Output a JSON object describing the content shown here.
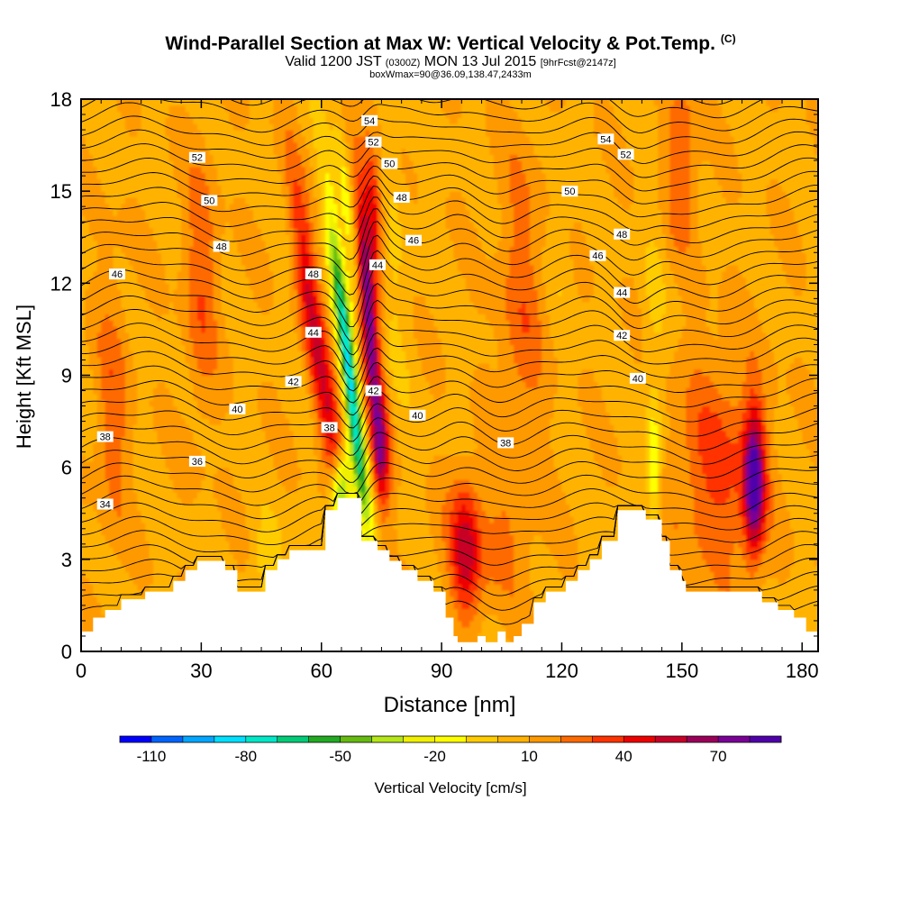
{
  "header": {
    "title": "Wind-Parallel Section at Max W: Vertical Velocity & Pot.Temp.",
    "title_tag": "(C)",
    "valid_prefix": "Valid 1200 JST",
    "valid_utc": "(0300Z)",
    "valid_date": "MON 13 Jul 2015",
    "forecast": "[9hrFcst@2147z]",
    "boxline": "boxWmax=90@36.09,138.47,2433m"
  },
  "chart_data": {
    "type": "heatmap",
    "xlabel": "Distance [nm]",
    "ylabel": "Height [Kft MSL]",
    "xlim": [
      0,
      184
    ],
    "ylim": [
      0,
      18
    ],
    "x_ticks": [
      0,
      30,
      60,
      90,
      120,
      150,
      180
    ],
    "y_ticks": [
      0,
      3,
      6,
      9,
      12,
      15,
      18
    ],
    "colorbar": {
      "label": "Vertical Velocity [cm/s]",
      "tick_labels": [
        "-110",
        "-80",
        "-50",
        "-20",
        "10",
        "40",
        "70"
      ],
      "tick_values": [
        -110,
        -80,
        -50,
        -20,
        10,
        40,
        70
      ],
      "min": -120,
      "max": 90,
      "colors": [
        "#0000ff",
        "#0064ff",
        "#00a6ff",
        "#00e0ff",
        "#00e8c8",
        "#00cc77",
        "#22aa22",
        "#66bb11",
        "#b4e619",
        "#f0f000",
        "#ffff00",
        "#ffcc00",
        "#ffb300",
        "#ff9900",
        "#ff6a00",
        "#ff3300",
        "#ee0000",
        "#c80028",
        "#9a005a",
        "#7a0096",
        "#5000aa"
      ]
    },
    "background_w": 8,
    "w_features": [
      {
        "x": 57,
        "y": 11.5,
        "sx": 2.0,
        "sy": 3.0,
        "tilt": -0.9,
        "w": 40
      },
      {
        "x": 63,
        "y": 7.0,
        "sx": 1.8,
        "sy": 2.0,
        "tilt": -0.9,
        "w": 30
      },
      {
        "x": 67,
        "y": 9.0,
        "sx": 1.4,
        "sy": 3.6,
        "tilt": -0.9,
        "w": -90
      },
      {
        "x": 67,
        "y": 14.0,
        "sx": 1.4,
        "sy": 2.0,
        "tilt": -0.9,
        "w": -30
      },
      {
        "x": 65,
        "y": 5.2,
        "sx": 1.8,
        "sy": 0.9,
        "tilt": 0,
        "w": -70
      },
      {
        "x": 72,
        "y": 10.5,
        "sx": 1.6,
        "sy": 3.2,
        "tilt": -0.6,
        "w": 70
      },
      {
        "x": 73,
        "y": 14.5,
        "sx": 1.6,
        "sy": 1.6,
        "tilt": -0.5,
        "w": 40
      },
      {
        "x": 75,
        "y": 6.5,
        "sx": 1.6,
        "sy": 1.2,
        "tilt": 0,
        "w": 35
      },
      {
        "x": 78,
        "y": 12.0,
        "sx": 3.0,
        "sy": 4.0,
        "tilt": 0,
        "w": -8
      },
      {
        "x": 96,
        "y": 3.3,
        "sx": 2.4,
        "sy": 1.6,
        "tilt": 0,
        "w": 35
      },
      {
        "x": 168,
        "y": 5.5,
        "sx": 1.8,
        "sy": 1.6,
        "tilt": 0,
        "w": 75
      },
      {
        "x": 159,
        "y": 6.0,
        "sx": 8.0,
        "sy": 2.5,
        "tilt": 0,
        "w": 25
      },
      {
        "x": 143,
        "y": 6.0,
        "sx": 1.2,
        "sy": 1.3,
        "tilt": 0,
        "w": -30
      },
      {
        "x": 143,
        "y": 10.0,
        "sx": 2.0,
        "sy": 3.0,
        "tilt": 0,
        "w": -10
      },
      {
        "x": 47,
        "y": 3.0,
        "sx": 3.0,
        "sy": 1.0,
        "tilt": 0,
        "w": -15
      },
      {
        "x": 100,
        "y": 3.5,
        "sx": 8.0,
        "sy": 1.5,
        "tilt": 0,
        "w": 15
      },
      {
        "x": 30,
        "y": 12.0,
        "sx": 3.0,
        "sy": 3.0,
        "tilt": 0,
        "w": 20
      },
      {
        "x": 8,
        "y": 8.0,
        "sx": 3.0,
        "sy": 3.0,
        "tilt": 0,
        "w": 18
      },
      {
        "x": 110,
        "y": 11.0,
        "sx": 4.0,
        "sy": 4.0,
        "tilt": 0,
        "w": 18
      },
      {
        "x": 150,
        "y": 16.0,
        "sx": 3.0,
        "sy": 2.0,
        "tilt": 0,
        "w": 20
      },
      {
        "x": 120,
        "y": 14.0,
        "sx": 2.0,
        "sy": 2.0,
        "tilt": 0,
        "w": -8
      }
    ],
    "terrain_steps": [
      [
        0,
        0.65
      ],
      [
        3,
        1.1
      ],
      [
        6,
        1.35
      ],
      [
        10,
        1.7
      ],
      [
        16,
        1.95
      ],
      [
        23,
        2.3
      ],
      [
        26,
        2.65
      ],
      [
        29,
        2.95
      ],
      [
        36,
        2.65
      ],
      [
        39,
        1.95
      ],
      [
        46,
        2.65
      ],
      [
        49,
        3.0
      ],
      [
        52,
        3.3
      ],
      [
        61,
        4.6
      ],
      [
        64,
        5.0
      ],
      [
        70,
        3.6
      ],
      [
        74,
        3.3
      ],
      [
        77,
        2.95
      ],
      [
        80,
        2.65
      ],
      [
        84,
        2.3
      ],
      [
        88,
        1.95
      ],
      [
        91,
        1.1
      ],
      [
        93,
        0.5
      ],
      [
        94,
        0.3
      ],
      [
        99,
        0.5
      ],
      [
        101,
        0.3
      ],
      [
        104,
        0.65
      ],
      [
        106,
        0.3
      ],
      [
        108,
        0.5
      ],
      [
        110,
        0.9
      ],
      [
        113,
        1.6
      ],
      [
        116,
        1.95
      ],
      [
        121,
        2.3
      ],
      [
        124,
        2.65
      ],
      [
        127,
        3.0
      ],
      [
        130,
        3.6
      ],
      [
        134,
        4.6
      ],
      [
        141,
        4.3
      ],
      [
        145,
        3.6
      ],
      [
        147,
        2.65
      ],
      [
        150,
        2.3
      ],
      [
        151,
        1.95
      ],
      [
        170,
        1.6
      ],
      [
        174,
        1.35
      ],
      [
        178,
        1.1
      ],
      [
        181,
        0.65
      ],
      [
        184,
        0.65
      ]
    ],
    "theta_labels": [
      {
        "text": "54",
        "x": 72,
        "y": 17.3
      },
      {
        "text": "54",
        "x": 131,
        "y": 16.7
      },
      {
        "text": "52",
        "x": 29,
        "y": 16.1
      },
      {
        "text": "52",
        "x": 73,
        "y": 16.6
      },
      {
        "text": "52",
        "x": 136,
        "y": 16.2
      },
      {
        "text": "50",
        "x": 32,
        "y": 14.7
      },
      {
        "text": "50",
        "x": 77,
        "y": 15.9
      },
      {
        "text": "50",
        "x": 122,
        "y": 15.0
      },
      {
        "text": "48",
        "x": 35,
        "y": 13.2
      },
      {
        "text": "48",
        "x": 80,
        "y": 14.8
      },
      {
        "text": "48",
        "x": 135,
        "y": 13.6
      },
      {
        "text": "46",
        "x": 9,
        "y": 12.3
      },
      {
        "text": "46",
        "x": 83,
        "y": 13.4
      },
      {
        "text": "46",
        "x": 129,
        "y": 12.9
      },
      {
        "text": "48",
        "x": 58,
        "y": 12.3
      },
      {
        "text": "44",
        "x": 74,
        "y": 12.6
      },
      {
        "text": "44",
        "x": 135,
        "y": 11.7
      },
      {
        "text": "44",
        "x": 58,
        "y": 10.4
      },
      {
        "text": "42",
        "x": 135,
        "y": 10.3
      },
      {
        "text": "42",
        "x": 53,
        "y": 8.8
      },
      {
        "text": "42",
        "x": 73,
        "y": 8.5
      },
      {
        "text": "40",
        "x": 39,
        "y": 7.9
      },
      {
        "text": "40",
        "x": 84,
        "y": 7.7
      },
      {
        "text": "40",
        "x": 139,
        "y": 8.9
      },
      {
        "text": "38",
        "x": 6,
        "y": 7.0
      },
      {
        "text": "38",
        "x": 62,
        "y": 7.3
      },
      {
        "text": "38",
        "x": 106,
        "y": 6.8
      },
      {
        "text": "36",
        "x": 29,
        "y": 6.2
      },
      {
        "text": "34",
        "x": 6,
        "y": 4.8
      }
    ]
  }
}
